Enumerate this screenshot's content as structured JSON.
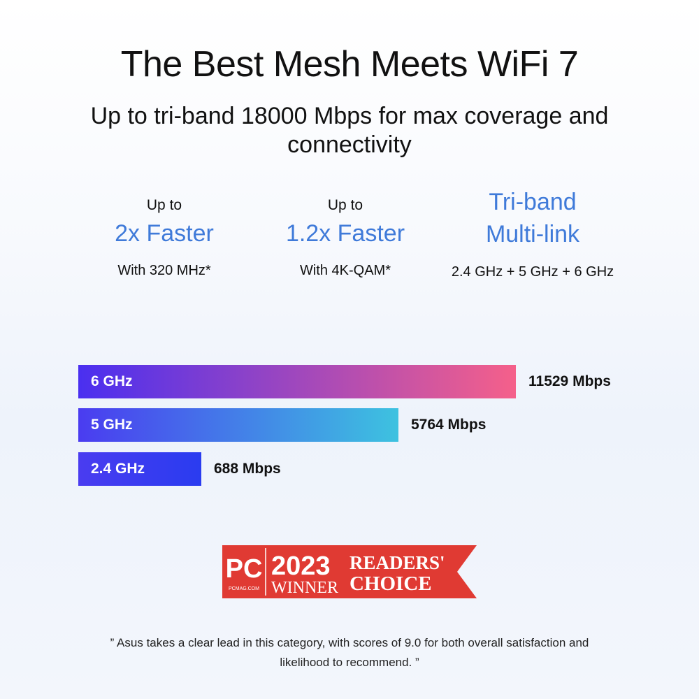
{
  "header": {
    "title": "The Best Mesh Meets WiFi 7",
    "subtitle": "Up to tri-band 18000 Mbps for max coverage and connectivity"
  },
  "features": [
    {
      "pre": "Up to",
      "highlight": "2x Faster",
      "post": "With 320 MHz*"
    },
    {
      "pre": "Up to",
      "highlight": "1.2x Faster",
      "post": "With 4K-QAM*"
    },
    {
      "pre": "",
      "highlight": "Tri-band Multi-link",
      "post": "2.4 GHz + 5 GHz + 6 GHz"
    }
  ],
  "colors": {
    "accent": "#3f7ad9",
    "badge_red": "#e03a33"
  },
  "chart_data": {
    "type": "bar",
    "orientation": "horizontal",
    "categories": [
      "6 GHz",
      "5 GHz",
      "2.4 GHz"
    ],
    "values": [
      11529,
      5764,
      688
    ],
    "value_labels": [
      "11529 Mbps",
      "5764 Mbps",
      "688 Mbps"
    ],
    "unit": "Mbps",
    "grid": false,
    "bar_gradients": [
      [
        "#4a2ff0",
        "#f5608a"
      ],
      [
        "#4a3cf0",
        "#3dc2e0"
      ],
      [
        "#4a3cf0",
        "#2a3cf0"
      ]
    ]
  },
  "badge": {
    "logo": "PC",
    "logo_sub": "PCMAG.COM",
    "year": "2023",
    "winner": "WINNER",
    "line1": "READERS'",
    "line2": "CHOICE"
  },
  "quote": "” Asus takes a clear lead in this category, with scores of 9.0 for both overall satisfaction and likelihood to recommend. ”"
}
